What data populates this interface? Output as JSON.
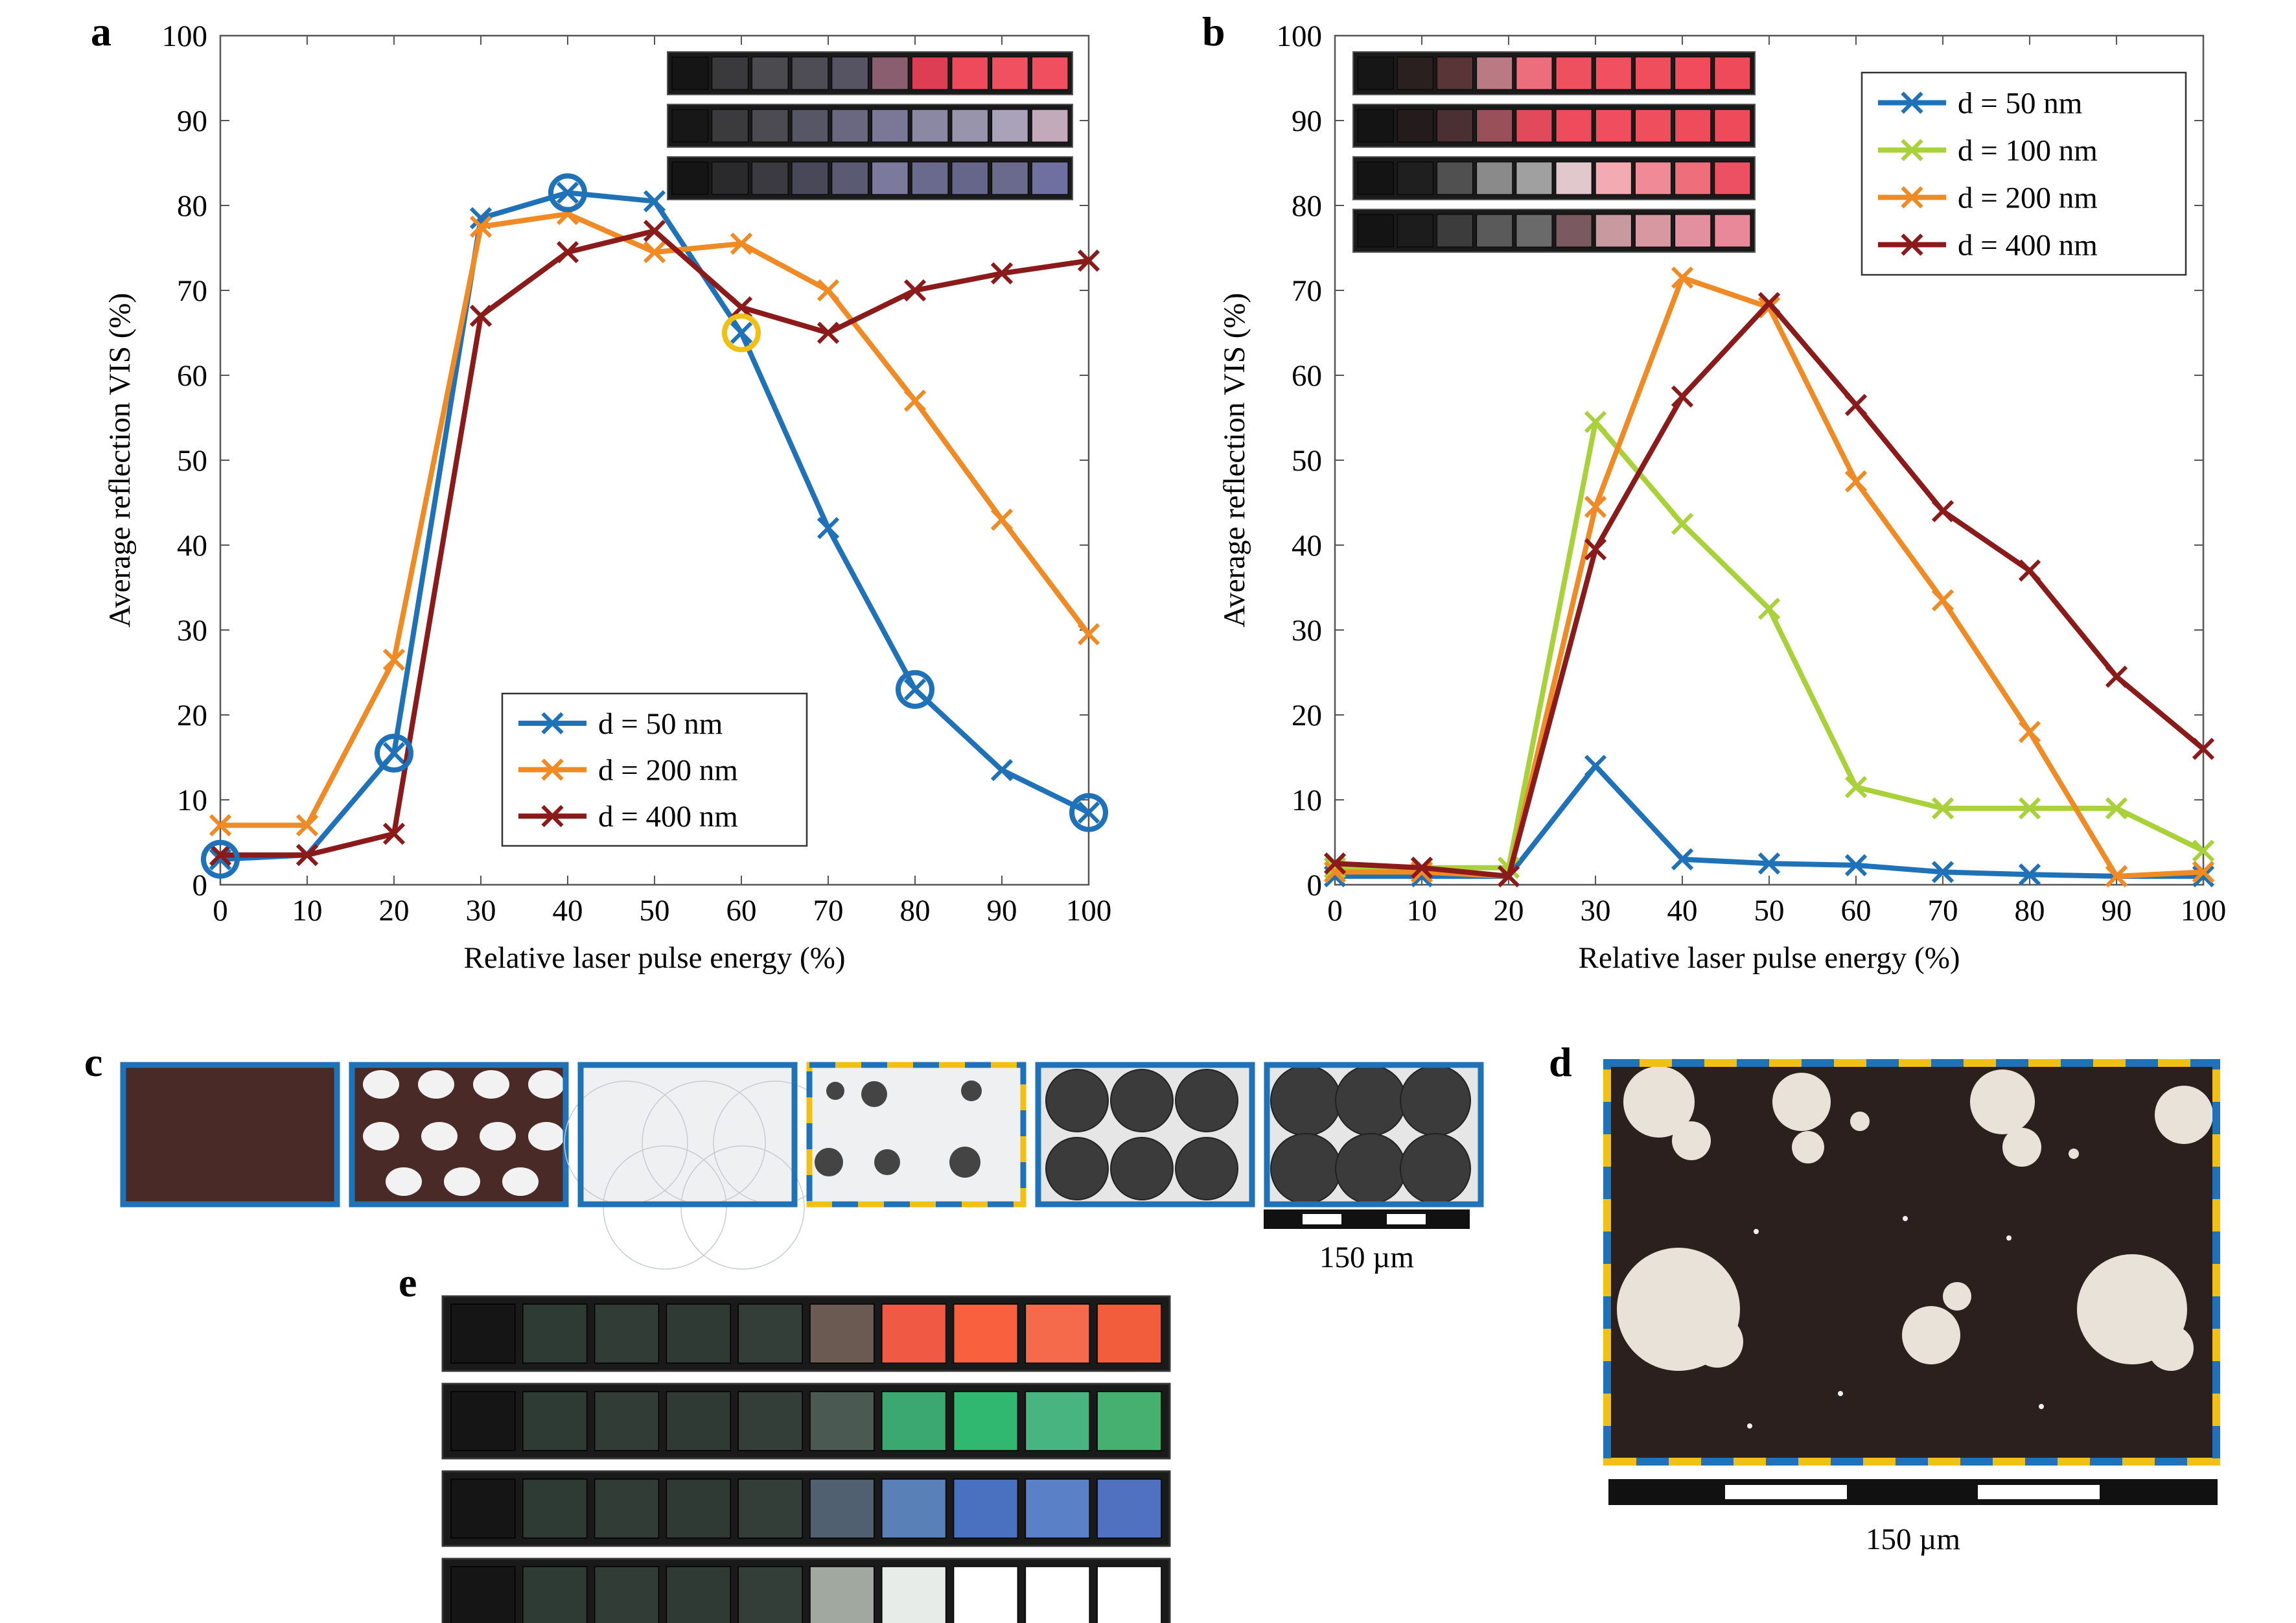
{
  "panels": {
    "a": "a",
    "b": "b",
    "c": "c",
    "d": "d",
    "e": "e"
  },
  "colors": {
    "d50": "#1F72B8",
    "d100": "#A9D13A",
    "d200": "#F08A24",
    "d400": "#8B1A1A",
    "highlight": "#F2C014",
    "frame_dark": "#111111"
  },
  "chart_data": [
    {
      "id": "a",
      "type": "line",
      "xlabel": "Relative laser pulse energy (%)",
      "ylabel": "Average reflection VIS (%)",
      "xlim": [
        0,
        100
      ],
      "ylim": [
        0,
        100
      ],
      "xticks": [
        0,
        10,
        20,
        30,
        40,
        50,
        60,
        70,
        80,
        90,
        100
      ],
      "yticks": [
        0,
        10,
        20,
        30,
        40,
        50,
        60,
        70,
        80,
        90,
        100
      ],
      "x": [
        0,
        10,
        20,
        30,
        40,
        50,
        60,
        70,
        80,
        90,
        100
      ],
      "legend_position": "bottom-center",
      "series": [
        {
          "name": "d = 50 nm",
          "color": "#1F72B8",
          "values": [
            3,
            3.5,
            15.5,
            78.5,
            81.5,
            80.5,
            65,
            42,
            23,
            13.5,
            8.5
          ]
        },
        {
          "name": "d = 200 nm",
          "color": "#F08A24",
          "values": [
            7,
            7,
            26.5,
            77.5,
            79,
            74.5,
            75.5,
            70,
            57,
            43,
            29.5
          ]
        },
        {
          "name": "d = 400 nm",
          "color": "#8B1A1A",
          "values": [
            3.5,
            3.5,
            6,
            67,
            74.5,
            77,
            68,
            65,
            70,
            72,
            73.5
          ]
        }
      ],
      "circled_points": [
        {
          "series": 0,
          "index": 0,
          "color": "#1F72B8"
        },
        {
          "series": 0,
          "index": 2,
          "color": "#1F72B8"
        },
        {
          "series": 0,
          "index": 4,
          "color": "#1F72B8"
        },
        {
          "series": 0,
          "index": 6,
          "color": "#F2C014"
        },
        {
          "series": 0,
          "index": 8,
          "color": "#1F72B8"
        },
        {
          "series": 0,
          "index": 10,
          "color": "#1F72B8"
        }
      ],
      "swatch_rows": [
        [
          "#151515",
          "#3a3a3d",
          "#4a4a4f",
          "#4e4c55",
          "#565463",
          "#8a5e6e",
          "#de3e53",
          "#ee4a5c",
          "#f0505f",
          "#ef4f5e"
        ],
        [
          "#171717",
          "#3b3b3e",
          "#4c4b52",
          "#575666",
          "#6a6880",
          "#7a7896",
          "#8a88a2",
          "#9894ab",
          "#a9a2b8",
          "#c2aabb"
        ],
        [
          "#151515",
          "#2a2a2c",
          "#3a3a40",
          "#484858",
          "#5a5a72",
          "#7b7a9c",
          "#6a6a8c",
          "#66668a",
          "#6a6a8c",
          "#7070a0"
        ]
      ]
    },
    {
      "id": "b",
      "type": "line",
      "xlabel": "Relative laser pulse energy (%)",
      "ylabel": "Average reflection VIS (%)",
      "xlim": [
        0,
        100
      ],
      "ylim": [
        0,
        100
      ],
      "xticks": [
        0,
        10,
        20,
        30,
        40,
        50,
        60,
        70,
        80,
        90,
        100
      ],
      "yticks": [
        0,
        10,
        20,
        30,
        40,
        50,
        60,
        70,
        80,
        90,
        100
      ],
      "x": [
        0,
        10,
        20,
        30,
        40,
        50,
        60,
        70,
        80,
        90,
        100
      ],
      "legend_position": "top-right",
      "series": [
        {
          "name": "d = 50 nm",
          "color": "#1F72B8",
          "values": [
            1,
            1,
            1,
            14,
            3,
            2.5,
            2.3,
            1.5,
            1.2,
            1,
            1
          ]
        },
        {
          "name": "d = 100 nm",
          "color": "#A9D13A",
          "values": [
            2,
            2,
            2,
            54.5,
            42.5,
            32.5,
            11.5,
            9,
            9,
            9,
            4
          ]
        },
        {
          "name": "d = 200 nm",
          "color": "#F08A24",
          "values": [
            1.5,
            1.5,
            1,
            44.5,
            71.5,
            68,
            47.5,
            33.5,
            18,
            1,
            1.5
          ]
        },
        {
          "name": "d = 400 nm",
          "color": "#8B1A1A",
          "values": [
            2.5,
            2,
            1,
            39.5,
            57.5,
            68.5,
            56.5,
            44,
            37,
            24.5,
            16
          ]
        }
      ],
      "swatch_rows": [
        [
          "#161616",
          "#2a2020",
          "#5a3538",
          "#b97a84",
          "#ec6e7c",
          "#ee5060",
          "#f05060",
          "#ef4e5d",
          "#f04c5c",
          "#ee4a5a"
        ],
        [
          "#141414",
          "#241c1c",
          "#4a3033",
          "#9a5058",
          "#e04a5a",
          "#ee4c5c",
          "#f04e5e",
          "#ef4e5d",
          "#ef4c5b",
          "#ee4a5a"
        ],
        [
          "#141414",
          "#1f1f1f",
          "#505050",
          "#8a8a8a",
          "#a0a0a0",
          "#e0c8cc",
          "#f4aab2",
          "#f08a96",
          "#ee6e7c",
          "#ec5062"
        ],
        [
          "#141414",
          "#1c1c1c",
          "#3c3c3c",
          "#5a5a5a",
          "#6a6a6a",
          "#7a5a60",
          "#c89aa0",
          "#d898a2",
          "#e290a0",
          "#e88898"
        ]
      ]
    }
  ],
  "panel_c": {
    "scale_label": "150 µm",
    "tiles": [
      {
        "style": "solid-brown"
      },
      {
        "style": "white-dots"
      },
      {
        "style": "light"
      },
      {
        "style": "islands",
        "highlight": true
      },
      {
        "style": "dark-circles"
      },
      {
        "style": "dark-circles-dense"
      }
    ]
  },
  "panel_d": {
    "scale_label": "150 µm"
  },
  "panel_e": {
    "swatch_rows": [
      [
        "#151515",
        "#2e3a34",
        "#323c36",
        "#303a34",
        "#343e38",
        "#6a5a52",
        "#f05a44",
        "#f8603e",
        "#f46a4a",
        "#f25e3c"
      ],
      [
        "#151515",
        "#2e3a34",
        "#323c36",
        "#303a34",
        "#343e38",
        "#4a5a52",
        "#3aa870",
        "#30b870",
        "#48b480",
        "#46b070"
      ],
      [
        "#151515",
        "#2e3a34",
        "#323c36",
        "#303a34",
        "#343e38",
        "#506070",
        "#5a80b8",
        "#4a70c0",
        "#5a80c8",
        "#5070c0"
      ],
      [
        "#151515",
        "#2e3a34",
        "#323c36",
        "#303a34",
        "#343e38",
        "#a0a8a0",
        "#e8ece8",
        "#ffffff",
        "#ffffff",
        "#ffffff"
      ]
    ]
  }
}
